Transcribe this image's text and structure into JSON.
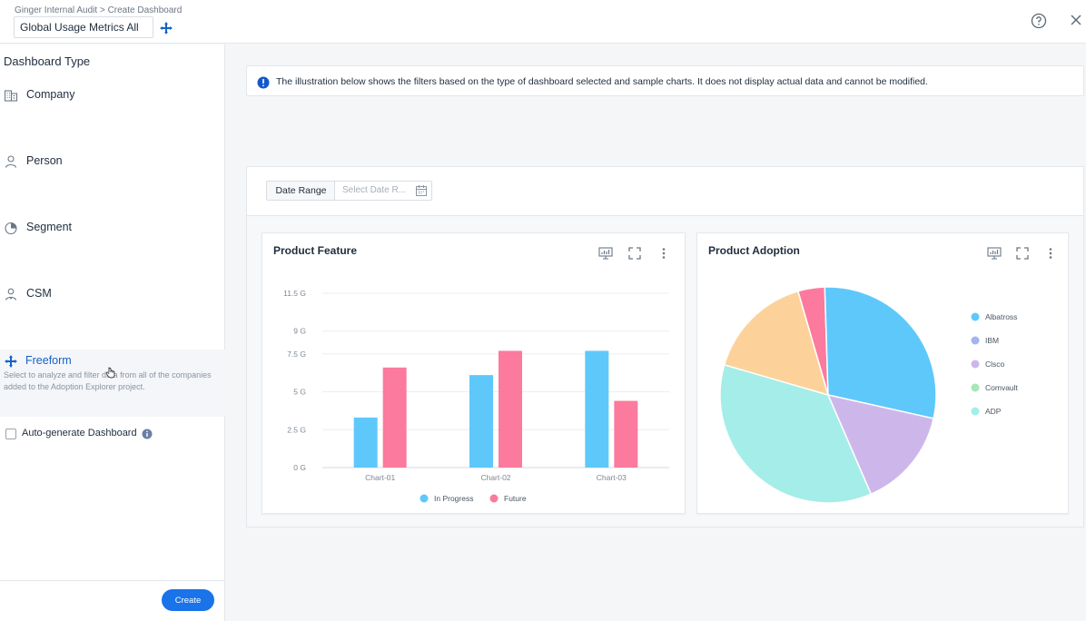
{
  "header": {
    "breadcrumb": "Ginger Internal Audit > Create Dashboard",
    "dashboard_name": "Global Usage Metrics All"
  },
  "sidebar": {
    "title": "Dashboard Type",
    "items": [
      {
        "label": "Company",
        "icon": "building-icon"
      },
      {
        "label": "Person",
        "icon": "person-icon"
      },
      {
        "label": "Segment",
        "icon": "pie-icon"
      },
      {
        "label": "CSM",
        "icon": "csm-icon"
      },
      {
        "label": "Freeform",
        "icon": "move-icon",
        "selected": true,
        "description": "Select to analyze and filter data from all of the companies added to the Adoption Explorer project."
      }
    ],
    "auto_generate_label": "Auto-generate Dashboard",
    "auto_generate_checked": false,
    "create_label": "Create"
  },
  "banner": {
    "text": "The illustration below shows the filters based on the type of dashboard selected and sample charts. It does not display actual data and cannot be modified."
  },
  "filters": {
    "date_range_label": "Date Range",
    "date_range_placeholder": "Select Date R..."
  },
  "cards": {
    "feature_title": "Product Feature",
    "adoption_title": "Product Adoption"
  },
  "colors": {
    "in_progress": "#5ec8fb",
    "future": "#fb7a9d",
    "albatross": "#5ec8fb",
    "ibm": "#a3b4f3",
    "cisco": "#cdb7ea",
    "comvault": "#a8e6b8",
    "adp": "#a5ede8",
    "accent": "#1a73e8"
  },
  "chart_data": [
    {
      "type": "bar",
      "categories": [
        "Chart-01",
        "Chart-02",
        "Chart-03"
      ],
      "series": [
        {
          "name": "In Progress",
          "values": [
            3.3,
            6.1,
            7.7
          ]
        },
        {
          "name": "Future",
          "values": [
            6.6,
            7.7,
            4.4
          ]
        }
      ],
      "y_ticks": [
        "0 G",
        "2.5 G",
        "5 G",
        "7.5 G",
        "9 G",
        "11.5 G"
      ],
      "ylim": [
        0,
        11.5
      ],
      "grid": true,
      "legend": "bottom"
    },
    {
      "type": "pie",
      "legend_labels": [
        "Albatross",
        "IBM",
        "Clsco",
        "Comvault",
        "ADP"
      ],
      "slices": [
        {
          "label": "Pink",
          "value": 4
        },
        {
          "label": "Blue",
          "value": 29
        },
        {
          "label": "Lavender",
          "value": 15
        },
        {
          "label": "Aqua",
          "value": 36
        },
        {
          "label": "Peach",
          "value": 16
        }
      ],
      "slice_colors": [
        "#fb7a9d",
        "#5ec8fb",
        "#cdb7ea",
        "#a5ede8",
        "#fdd29a"
      ],
      "legend": "right"
    }
  ]
}
